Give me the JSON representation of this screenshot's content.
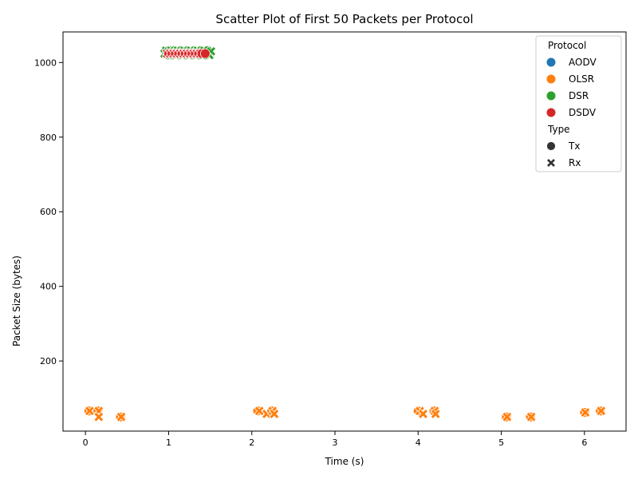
{
  "chart_data": {
    "type": "scatter",
    "title": "Scatter Plot of First 50 Packets per Protocol",
    "xlabel": "Time (s)",
    "ylabel": "Packet Size (bytes)",
    "xlim": [
      -0.27,
      6.5
    ],
    "ylim": [
      12,
      1082
    ],
    "xticks": [
      0,
      1,
      2,
      3,
      4,
      5,
      6
    ],
    "yticks": [
      200,
      400,
      600,
      800,
      1000
    ],
    "grid": false,
    "legend": {
      "placement": "top-right",
      "hue_title": "Protocol",
      "style_title": "Type",
      "protocols": [
        {
          "label": "AODV",
          "color": "#1f77b4"
        },
        {
          "label": "OLSR",
          "color": "#ff7f0e"
        },
        {
          "label": "DSR",
          "color": "#2ca02c"
        },
        {
          "label": "DSDV",
          "color": "#d62728"
        }
      ],
      "types": [
        {
          "label": "Tx",
          "marker": "circle"
        },
        {
          "label": "Rx",
          "marker": "x"
        }
      ]
    },
    "series": [
      {
        "name": "OLSR",
        "color": "#ff7f0e",
        "points": [
          {
            "x": 0.04,
            "y": 66,
            "type": "Tx"
          },
          {
            "x": 0.05,
            "y": 66,
            "type": "Rx"
          },
          {
            "x": 0.15,
            "y": 66,
            "type": "Tx"
          },
          {
            "x": 0.16,
            "y": 66,
            "type": "Rx"
          },
          {
            "x": 0.16,
            "y": 50,
            "type": "Rx"
          },
          {
            "x": 0.42,
            "y": 50,
            "type": "Tx"
          },
          {
            "x": 0.43,
            "y": 50,
            "type": "Rx"
          },
          {
            "x": 2.07,
            "y": 66,
            "type": "Tx"
          },
          {
            "x": 2.09,
            "y": 66,
            "type": "Rx"
          },
          {
            "x": 2.18,
            "y": 58,
            "type": "Rx"
          },
          {
            "x": 2.24,
            "y": 66,
            "type": "Tx"
          },
          {
            "x": 2.25,
            "y": 66,
            "type": "Rx"
          },
          {
            "x": 2.27,
            "y": 58,
            "type": "Rx"
          },
          {
            "x": 4.0,
            "y": 66,
            "type": "Tx"
          },
          {
            "x": 4.02,
            "y": 66,
            "type": "Rx"
          },
          {
            "x": 4.06,
            "y": 58,
            "type": "Rx"
          },
          {
            "x": 4.19,
            "y": 66,
            "type": "Tx"
          },
          {
            "x": 4.2,
            "y": 66,
            "type": "Rx"
          },
          {
            "x": 4.21,
            "y": 58,
            "type": "Rx"
          },
          {
            "x": 5.06,
            "y": 50,
            "type": "Tx"
          },
          {
            "x": 5.07,
            "y": 50,
            "type": "Rx"
          },
          {
            "x": 5.35,
            "y": 50,
            "type": "Tx"
          },
          {
            "x": 5.36,
            "y": 50,
            "type": "Rx"
          },
          {
            "x": 6.0,
            "y": 62,
            "type": "Tx"
          },
          {
            "x": 6.01,
            "y": 62,
            "type": "Rx"
          },
          {
            "x": 6.19,
            "y": 66,
            "type": "Tx"
          },
          {
            "x": 6.2,
            "y": 66,
            "type": "Rx"
          }
        ]
      },
      {
        "name": "DSR",
        "color": "#2ca02c",
        "points": [
          {
            "x": 0.95,
            "y": 1024,
            "type": "Rx"
          },
          {
            "x": 0.97,
            "y": 1032,
            "type": "Rx"
          },
          {
            "x": 0.99,
            "y": 1020,
            "type": "Tx"
          },
          {
            "x": 1.0,
            "y": 1032,
            "type": "Tx"
          },
          {
            "x": 1.01,
            "y": 1020,
            "type": "Rx"
          },
          {
            "x": 1.03,
            "y": 1032,
            "type": "Rx"
          },
          {
            "x": 1.05,
            "y": 1020,
            "type": "Tx"
          },
          {
            "x": 1.07,
            "y": 1032,
            "type": "Tx"
          },
          {
            "x": 1.09,
            "y": 1020,
            "type": "Rx"
          },
          {
            "x": 1.11,
            "y": 1032,
            "type": "Rx"
          },
          {
            "x": 1.13,
            "y": 1020,
            "type": "Tx"
          },
          {
            "x": 1.15,
            "y": 1032,
            "type": "Tx"
          },
          {
            "x": 1.17,
            "y": 1020,
            "type": "Rx"
          },
          {
            "x": 1.19,
            "y": 1032,
            "type": "Rx"
          },
          {
            "x": 1.21,
            "y": 1020,
            "type": "Tx"
          },
          {
            "x": 1.23,
            "y": 1032,
            "type": "Tx"
          },
          {
            "x": 1.25,
            "y": 1020,
            "type": "Rx"
          },
          {
            "x": 1.27,
            "y": 1032,
            "type": "Rx"
          },
          {
            "x": 1.29,
            "y": 1020,
            "type": "Tx"
          },
          {
            "x": 1.31,
            "y": 1032,
            "type": "Tx"
          },
          {
            "x": 1.33,
            "y": 1020,
            "type": "Rx"
          },
          {
            "x": 1.35,
            "y": 1032,
            "type": "Rx"
          },
          {
            "x": 1.37,
            "y": 1020,
            "type": "Tx"
          },
          {
            "x": 1.39,
            "y": 1032,
            "type": "Tx"
          },
          {
            "x": 1.41,
            "y": 1020,
            "type": "Rx"
          },
          {
            "x": 1.43,
            "y": 1032,
            "type": "Rx"
          },
          {
            "x": 1.45,
            "y": 1020,
            "type": "Tx"
          },
          {
            "x": 1.47,
            "y": 1032,
            "type": "Tx"
          },
          {
            "x": 1.49,
            "y": 1020,
            "type": "Rx"
          },
          {
            "x": 1.51,
            "y": 1030,
            "type": "Rx"
          }
        ]
      },
      {
        "name": "DSDV",
        "color": "#d62728",
        "points": [
          {
            "x": 0.98,
            "y": 1024,
            "type": "Rx"
          },
          {
            "x": 1.0,
            "y": 1024,
            "type": "Tx"
          },
          {
            "x": 1.02,
            "y": 1024,
            "type": "Rx"
          },
          {
            "x": 1.04,
            "y": 1024,
            "type": "Tx"
          },
          {
            "x": 1.06,
            "y": 1024,
            "type": "Rx"
          },
          {
            "x": 1.08,
            "y": 1024,
            "type": "Tx"
          },
          {
            "x": 1.1,
            "y": 1024,
            "type": "Rx"
          },
          {
            "x": 1.12,
            "y": 1024,
            "type": "Tx"
          },
          {
            "x": 1.14,
            "y": 1024,
            "type": "Rx"
          },
          {
            "x": 1.16,
            "y": 1024,
            "type": "Tx"
          },
          {
            "x": 1.18,
            "y": 1024,
            "type": "Rx"
          },
          {
            "x": 1.2,
            "y": 1024,
            "type": "Tx"
          },
          {
            "x": 1.22,
            "y": 1024,
            "type": "Rx"
          },
          {
            "x": 1.24,
            "y": 1024,
            "type": "Tx"
          },
          {
            "x": 1.26,
            "y": 1024,
            "type": "Rx"
          },
          {
            "x": 1.28,
            "y": 1024,
            "type": "Tx"
          },
          {
            "x": 1.3,
            "y": 1024,
            "type": "Rx"
          },
          {
            "x": 1.32,
            "y": 1024,
            "type": "Tx"
          },
          {
            "x": 1.34,
            "y": 1024,
            "type": "Rx"
          },
          {
            "x": 1.36,
            "y": 1024,
            "type": "Tx"
          },
          {
            "x": 1.38,
            "y": 1024,
            "type": "Rx"
          },
          {
            "x": 1.4,
            "y": 1024,
            "type": "Tx"
          },
          {
            "x": 1.44,
            "y": 1024,
            "type": "Tx"
          }
        ]
      }
    ]
  }
}
